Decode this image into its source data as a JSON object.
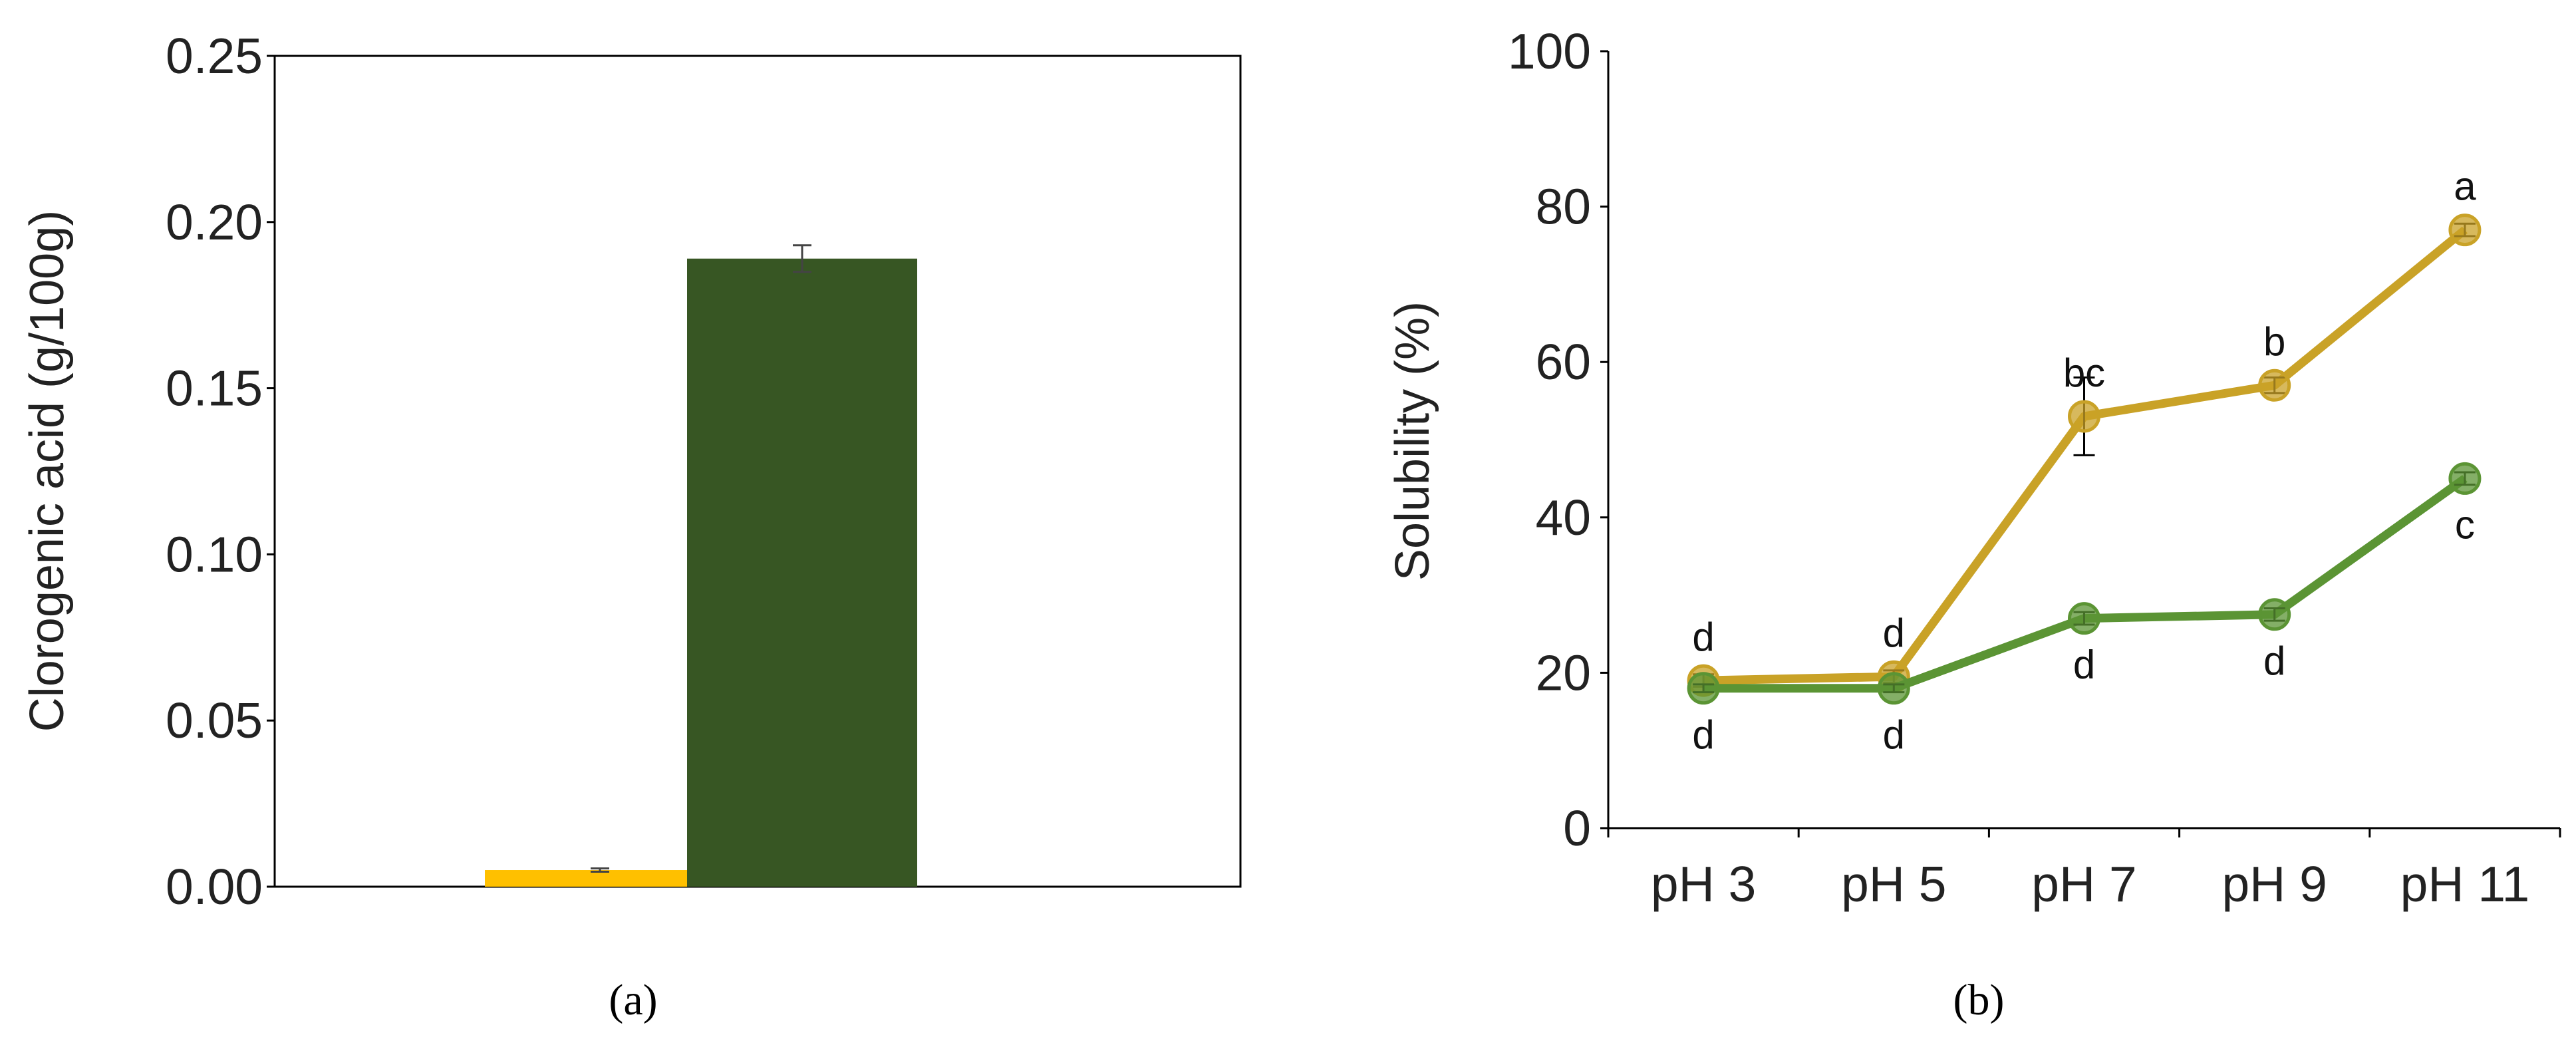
{
  "colors": {
    "yellow": "#FFC000",
    "dark_green": "#375623",
    "gold_line": "#C9A227",
    "gold_marker": "#C9A227",
    "green_line": "#5B9434",
    "green_marker": "#5B9434",
    "axis": "#000000",
    "error_bar": "#444444"
  },
  "chart_data": [
    {
      "id": "a",
      "type": "bar",
      "panel_label": "(a)",
      "ylabel": "Clorogenic acid (g/100g)",
      "xlabel": "",
      "ylim": [
        0,
        0.25
      ],
      "yticks": [
        "0.00",
        "0.05",
        "0.10",
        "0.15",
        "0.20",
        "0.25"
      ],
      "grid": false,
      "bars": [
        {
          "value": 0.005,
          "error": 0.0005,
          "color": "#FFC000"
        },
        {
          "value": 0.189,
          "error": 0.004,
          "color": "#375623"
        }
      ]
    },
    {
      "id": "b",
      "type": "line",
      "panel_label": "(b)",
      "ylabel": "Solubility (%)",
      "xlabel": "",
      "ylim": [
        0,
        100
      ],
      "yticks": [
        "0",
        "20",
        "40",
        "60",
        "80",
        "100"
      ],
      "categories": [
        "pH 3",
        "pH 5",
        "pH 7",
        "pH 9",
        "pH 11"
      ],
      "grid": false,
      "series": [
        {
          "color": "#C9A227",
          "values": [
            19,
            19.5,
            53,
            57,
            77
          ],
          "errors": [
            0.8,
            0.8,
            5,
            1,
            0.8
          ],
          "letters": [
            "d",
            "d",
            "bc",
            "b",
            "a"
          ],
          "letter_position": "above"
        },
        {
          "color": "#5B9434",
          "values": [
            18,
            18,
            27,
            27.5,
            45
          ],
          "errors": [
            0.5,
            0.5,
            0.8,
            0.8,
            0.8
          ],
          "letters": [
            "d",
            "d",
            "d",
            "d",
            "c"
          ],
          "letter_position": "below"
        }
      ]
    }
  ]
}
